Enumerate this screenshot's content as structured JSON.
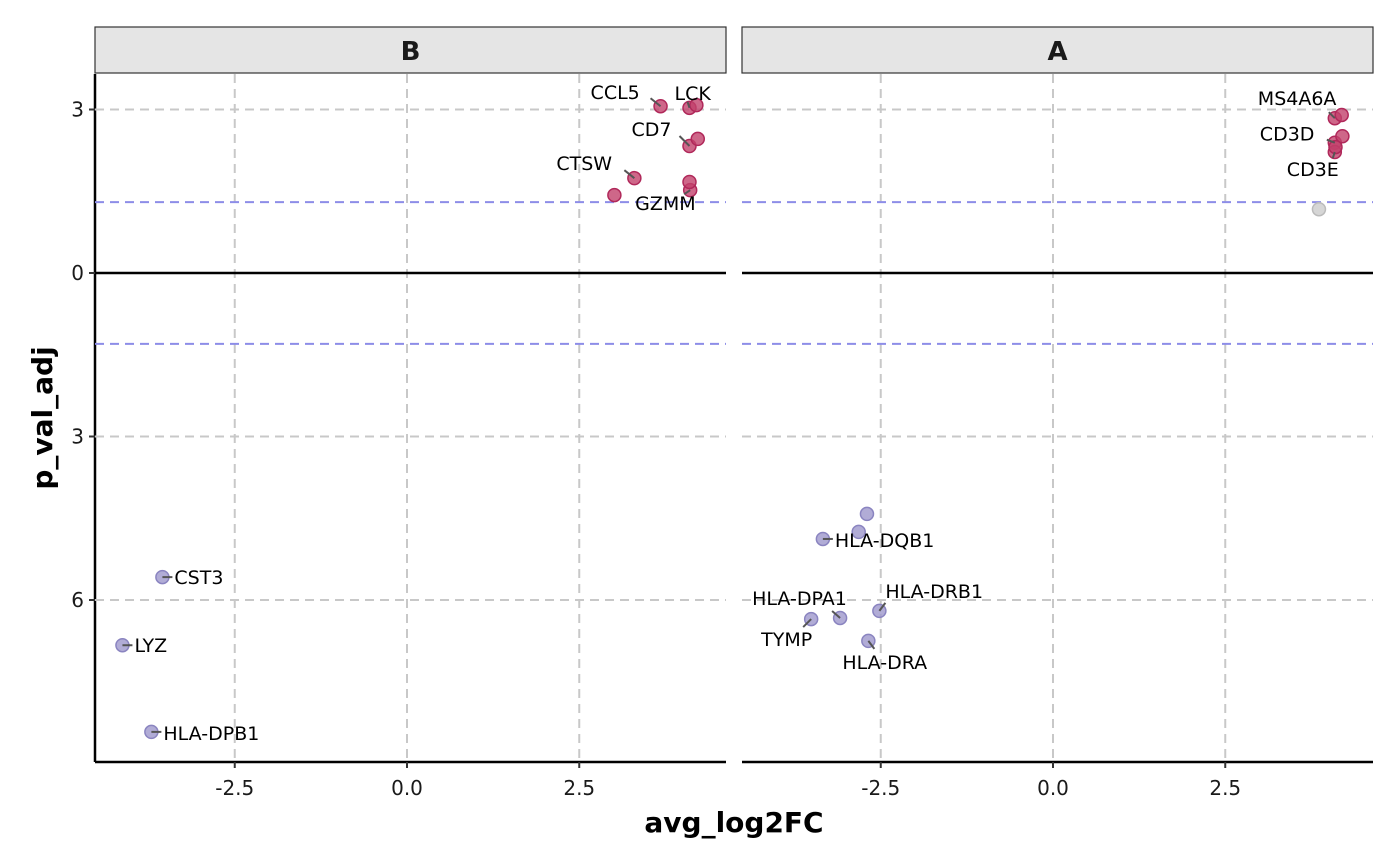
{
  "chart_data": {
    "type": "scatter",
    "title": "",
    "xlabel": "avg_log2FC",
    "ylabel": "p_val_adj",
    "xlim": [
      -4.5,
      4.65
    ],
    "ylim": [
      -8.97,
      3.65
    ],
    "x_ticks": [
      -2.5,
      0.0,
      2.5
    ],
    "x_tick_labels": [
      "-2.5",
      "0.0",
      "2.5"
    ],
    "y_ticks": [
      3,
      0,
      -3,
      -6
    ],
    "y_tick_labels": [
      "3",
      "0",
      "3",
      "6"
    ],
    "grid": true,
    "reference_lines": {
      "zero_line": 0,
      "significance_threshold": [
        1.3,
        -1.3
      ],
      "threshold_color": "#8d8de8",
      "zero_color": "#000000"
    },
    "colors": {
      "up": "#c2416b",
      "down": "#9d97cc",
      "nonsig": "#cccccc",
      "strip_bg": "#e5e5e5",
      "grid": "#c8c8c8"
    },
    "panels": [
      {
        "name": "B",
        "points": [
          {
            "x": 3.68,
            "y": 3.06,
            "group": "up",
            "label": "CCL5"
          },
          {
            "x": 4.1,
            "y": 3.03,
            "group": "up",
            "label": "LCK"
          },
          {
            "x": 4.2,
            "y": 3.08,
            "group": "up",
            "label": ""
          },
          {
            "x": 4.1,
            "y": 2.33,
            "group": "up",
            "label": "CD7"
          },
          {
            "x": 4.22,
            "y": 2.46,
            "group": "up",
            "label": ""
          },
          {
            "x": 3.3,
            "y": 1.74,
            "group": "up",
            "label": "CTSW"
          },
          {
            "x": 4.11,
            "y": 1.52,
            "group": "up",
            "label": "GZMM"
          },
          {
            "x": 4.1,
            "y": 1.67,
            "group": "up",
            "label": ""
          },
          {
            "x": 3.01,
            "y": 1.43,
            "group": "up",
            "label": ""
          },
          {
            "x": -3.55,
            "y": -5.58,
            "group": "down",
            "label": "CST3"
          },
          {
            "x": -4.13,
            "y": -6.83,
            "group": "down",
            "label": "LYZ"
          },
          {
            "x": -3.71,
            "y": -8.42,
            "group": "down",
            "label": "HLA-DPB1"
          }
        ]
      },
      {
        "name": "A",
        "points": [
          {
            "x": 4.09,
            "y": 2.84,
            "group": "up",
            "label": "MS4A6A"
          },
          {
            "x": 4.19,
            "y": 2.9,
            "group": "up",
            "label": ""
          },
          {
            "x": 4.09,
            "y": 2.39,
            "group": "up",
            "label": "CD3D"
          },
          {
            "x": 4.2,
            "y": 2.51,
            "group": "up",
            "label": ""
          },
          {
            "x": 4.09,
            "y": 2.22,
            "group": "up",
            "label": "CD3E"
          },
          {
            "x": 4.1,
            "y": 2.31,
            "group": "up",
            "label": ""
          },
          {
            "x": 3.86,
            "y": 1.17,
            "group": "nonsig",
            "label": ""
          },
          {
            "x": -2.7,
            "y": -4.42,
            "group": "down",
            "label": ""
          },
          {
            "x": -2.82,
            "y": -4.75,
            "group": "down",
            "label": ""
          },
          {
            "x": -3.34,
            "y": -4.88,
            "group": "down",
            "label": "HLA-DQB1"
          },
          {
            "x": -2.52,
            "y": -6.2,
            "group": "down",
            "label": "HLA-DRB1"
          },
          {
            "x": -3.09,
            "y": -6.33,
            "group": "down",
            "label": "HLA-DPA1"
          },
          {
            "x": -3.51,
            "y": -6.35,
            "group": "down",
            "label": "TYMP"
          },
          {
            "x": -2.68,
            "y": -6.75,
            "group": "down",
            "label": "HLA-DRA"
          }
        ]
      }
    ]
  }
}
